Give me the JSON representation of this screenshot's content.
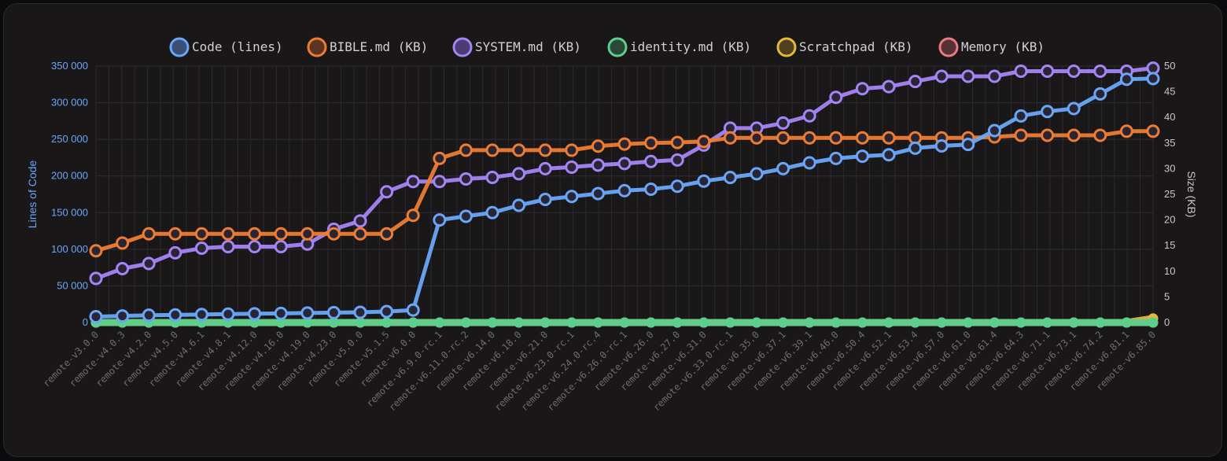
{
  "chart_data": {
    "type": "line",
    "title": "",
    "ylabel": "Lines of Code",
    "y2label": "Size (KB)",
    "ylim": [
      0,
      350000
    ],
    "y2lim": [
      0,
      50
    ],
    "yticks": [
      "350 000",
      "300 000",
      "250 000",
      "200 000",
      "150 000",
      "100 000",
      "50 000",
      "0"
    ],
    "y2ticks": [
      "50",
      "45",
      "40",
      "35",
      "30",
      "25",
      "20",
      "15",
      "10",
      "5",
      "0"
    ],
    "legend_position": "top",
    "grid": true,
    "x_categories": [
      "remote-v3.0.0",
      "remote-v4.0.3",
      "remote-v4.2.0",
      "remote-v4.5.0",
      "remote-v4.6.1",
      "remote-v4.8.1",
      "remote-v4.12.0",
      "remote-v4.16.0",
      "remote-v4.19.0",
      "remote-v4.23.0",
      "remote-v5.0.0",
      "remote-v5.1.5",
      "remote-v6.0.0",
      "remote-v6.9.0-rc.1",
      "remote-v6.11.0-rc.2",
      "remote-v6.14.0",
      "remote-v6.18.0",
      "remote-v6.21.0",
      "remote-v6.23.0-rc.1",
      "remote-v6.24.0-rc.4",
      "remote-v6.26.0-rc.1",
      "remote-v6.26.0",
      "remote-v6.27.0",
      "remote-v6.31.0",
      "remote-v6.33.0-rc.1",
      "remote-v6.35.0",
      "remote-v6.37.1",
      "remote-v6.39.1",
      "remote-v6.46.0",
      "remote-v6.50.4",
      "remote-v6.52.1",
      "remote-v6.53.4",
      "remote-v6.57.0",
      "remote-v6.61.0",
      "remote-v6.61.4",
      "remote-v6.64.3",
      "remote-v6.71.1",
      "remote-v6.73.1",
      "remote-v6.74.2",
      "remote-v6.81.1",
      "remote-v6.85.0"
    ],
    "series": [
      {
        "name": "Code (lines)",
        "axis": "left",
        "color": "#6aa6f8",
        "values": [
          8000,
          9000,
          10000,
          10500,
          11000,
          11500,
          12000,
          12500,
          13000,
          13500,
          14000,
          15000,
          17000,
          140000,
          145000,
          150000,
          160000,
          168000,
          172000,
          176000,
          180000,
          182000,
          186000,
          193000,
          198000,
          203000,
          210000,
          218000,
          224000,
          227000,
          229000,
          238000,
          241000,
          243000,
          262000,
          282000,
          288000,
          292000,
          312000,
          332000,
          333000
        ]
      },
      {
        "name": "BIBLE.md (KB)",
        "axis": "right",
        "color": "#ee7c33",
        "values": [
          14,
          15.5,
          17.3,
          17.3,
          17.3,
          17.3,
          17.3,
          17.3,
          17.3,
          17.3,
          17.3,
          17.3,
          20.9,
          32,
          33.6,
          33.6,
          33.6,
          33.6,
          33.6,
          34.4,
          34.8,
          35,
          35.1,
          35.3,
          36,
          36,
          36,
          36,
          36,
          36,
          36,
          36,
          36,
          36,
          36.2,
          36.5,
          36.5,
          36.5,
          36.5,
          37.3,
          37.3
        ]
      },
      {
        "name": "SYSTEM.md (KB)",
        "axis": "right",
        "color": "#a585f6",
        "values": [
          8.6,
          10.5,
          11.5,
          13.6,
          14.5,
          14.8,
          14.8,
          14.8,
          15.3,
          18.2,
          19.8,
          25.5,
          27.5,
          27.5,
          28,
          28.3,
          29,
          30,
          30.3,
          30.7,
          31,
          31.4,
          31.7,
          34.6,
          37.9,
          37.9,
          38.9,
          40.3,
          43.9,
          45.6,
          46,
          47,
          48,
          48,
          48,
          49,
          49,
          49,
          49,
          49,
          49.6
        ]
      },
      {
        "name": "identity.md (KB)",
        "axis": "right",
        "color": "#5ccf8c",
        "values": [
          0,
          0,
          0,
          0,
          0,
          0,
          0,
          0,
          0,
          0,
          0,
          0,
          0,
          0,
          0,
          0,
          0,
          0,
          0,
          0,
          0,
          0,
          0,
          0,
          0,
          0,
          0,
          0,
          0,
          0,
          0,
          0,
          0,
          0,
          0,
          0,
          0,
          0,
          0,
          0,
          0
        ]
      },
      {
        "name": "Scratchpad (KB)",
        "axis": "right",
        "color": "#e5b83a",
        "values": [
          0,
          0,
          0,
          0,
          0,
          0,
          0,
          0,
          0,
          0,
          0,
          0,
          0,
          0,
          0,
          0,
          0,
          0,
          0,
          0,
          0,
          0,
          0,
          0,
          0,
          0,
          0,
          0,
          0,
          0,
          0,
          0,
          0,
          0,
          0,
          0,
          0,
          0,
          0,
          0,
          0.8
        ]
      },
      {
        "name": "Memory (KB)",
        "axis": "right",
        "color": "#e87a82",
        "values": [
          0,
          0,
          0,
          0,
          0,
          0,
          0,
          0,
          0,
          0,
          0,
          0,
          0,
          0,
          0,
          0,
          0,
          0,
          0,
          0,
          0,
          0,
          0,
          0,
          0,
          0,
          0,
          0,
          0,
          0,
          0,
          0,
          0,
          0,
          0,
          0,
          0,
          0,
          0,
          0,
          0
        ]
      }
    ]
  }
}
